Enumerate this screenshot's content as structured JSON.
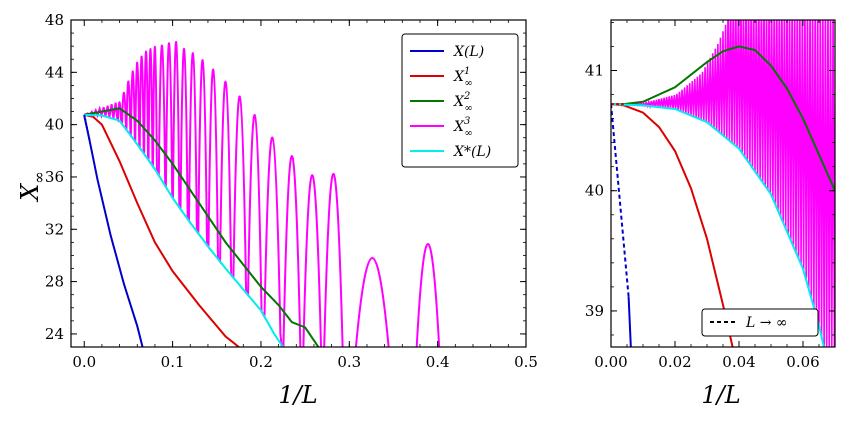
{
  "chart_data": [
    {
      "type": "line",
      "panel": "left",
      "xlabel": "1/L",
      "ylabel": "X∞",
      "xlim": [
        -0.015,
        0.5
      ],
      "ylim": [
        23,
        48
      ],
      "x_ticks": [
        "0.0",
        "0.1",
        "0.2",
        "0.3",
        "0.4",
        "0.5"
      ],
      "y_ticks": [
        "24",
        "28",
        "32",
        "36",
        "40",
        "44",
        "48"
      ],
      "legend": {
        "placement": "top-right",
        "entries": [
          "X(L)",
          "X∞1",
          "X∞2",
          "X∞3",
          "X*(L)"
        ]
      },
      "series": [
        {
          "name": "X(L)",
          "color": "#0000cc",
          "x": [
            0.0,
            0.006,
            0.015,
            0.03,
            0.045,
            0.06,
            0.066
          ],
          "y": [
            40.7,
            38.8,
            35.8,
            31.5,
            27.8,
            24.6,
            23.0
          ]
        },
        {
          "name": "X∞1",
          "color": "#dd0000",
          "x": [
            0.0,
            0.01,
            0.02,
            0.04,
            0.06,
            0.08,
            0.1,
            0.13,
            0.16,
            0.175
          ],
          "y": [
            40.75,
            40.6,
            40.0,
            37.2,
            34.0,
            31.0,
            28.8,
            26.2,
            23.8,
            23.0
          ]
        },
        {
          "name": "X∞2",
          "color": "#007700",
          "x": [
            0.0,
            0.02,
            0.04,
            0.06,
            0.08,
            0.1,
            0.12,
            0.14,
            0.16,
            0.18,
            0.2,
            0.22,
            0.235,
            0.25,
            0.265
          ],
          "y": [
            40.75,
            41.0,
            41.25,
            40.3,
            38.8,
            37.0,
            35.0,
            33.0,
            31.0,
            29.3,
            27.6,
            26.2,
            24.9,
            24.5,
            23.0
          ]
        },
        {
          "name": "X*(L)",
          "color": "#00eeee",
          "x": [
            0.0,
            0.02,
            0.04,
            0.06,
            0.08,
            0.1,
            0.12,
            0.14,
            0.16,
            0.18,
            0.2,
            0.215,
            0.225
          ],
          "y": [
            40.75,
            40.7,
            40.3,
            38.5,
            36.6,
            34.4,
            32.5,
            30.7,
            29.0,
            27.4,
            25.8,
            24.0,
            23.0
          ]
        }
      ],
      "x_infinity_3": {
        "name": "X∞3",
        "color": "#ff00ff",
        "lower_envelope": {
          "x": [
            0.0,
            0.02,
            0.04,
            0.06,
            0.08,
            0.1,
            0.12,
            0.14,
            0.16,
            0.18,
            0.2,
            0.215
          ],
          "y": [
            40.75,
            40.7,
            40.3,
            38.5,
            36.6,
            34.4,
            32.5,
            30.7,
            29.0,
            27.4,
            25.8,
            24.0
          ]
        },
        "peaks": {
          "x": [
            0.04,
            0.045,
            0.05,
            0.055,
            0.06,
            0.065,
            0.07,
            0.075,
            0.08,
            0.088,
            0.096,
            0.104,
            0.113,
            0.123,
            0.134,
            0.146,
            0.16,
            0.176,
            0.193,
            0.213,
            0.235,
            0.258,
            0.282,
            0.326,
            0.389
          ],
          "y": [
            41.8,
            42.6,
            43.5,
            44.3,
            45.0,
            45.5,
            45.9,
            46.1,
            46.3,
            46.5,
            46.7,
            46.8,
            46.3,
            46.0,
            45.5,
            44.8,
            43.9,
            42.8,
            41.4,
            39.7,
            38.0,
            36.5,
            36.6,
            30.0,
            31.1
          ]
        }
      }
    },
    {
      "type": "line",
      "panel": "right",
      "xlabel": "1/L",
      "xlim": [
        0.0,
        0.07
      ],
      "ylim": [
        38.7,
        41.42
      ],
      "x_ticks": [
        "0.00",
        "0.02",
        "0.04",
        "0.06"
      ],
      "y_ticks": [
        "39",
        "40",
        "41"
      ],
      "legend": {
        "placement": "bottom-right",
        "entries": [
          "L → ∞"
        ]
      },
      "series": [
        {
          "name": "X(L)",
          "color": "#0000cc",
          "x": [
            0.0,
            0.0055,
            0.0062
          ],
          "y": [
            40.72,
            39.12,
            38.7
          ],
          "dashed_until": 0.0055
        },
        {
          "name": "X∞1",
          "color": "#dd0000",
          "x": [
            0.0,
            0.004,
            0.01,
            0.015,
            0.02,
            0.025,
            0.03,
            0.035,
            0.038
          ],
          "y": [
            40.72,
            40.71,
            40.65,
            40.53,
            40.33,
            40.02,
            39.6,
            39.05,
            38.7
          ]
        },
        {
          "name": "X∞2",
          "color": "#007700",
          "x": [
            0.0,
            0.004,
            0.01,
            0.02,
            0.03,
            0.035,
            0.04,
            0.045,
            0.05,
            0.055,
            0.06,
            0.065,
            0.07
          ],
          "y": [
            40.72,
            40.72,
            40.74,
            40.86,
            41.07,
            41.16,
            41.2,
            41.17,
            41.04,
            40.85,
            40.6,
            40.3,
            40.0
          ]
        },
        {
          "name": "X*(L)",
          "color": "#00eeee",
          "x": [
            0.0,
            0.01,
            0.02,
            0.03,
            0.04,
            0.05,
            0.06,
            0.065,
            0.0665
          ],
          "y": [
            40.72,
            40.71,
            40.68,
            40.57,
            40.35,
            39.97,
            39.35,
            38.88,
            38.7
          ]
        }
      ],
      "x_infinity_3": {
        "name": "X∞3",
        "color": "#ff00ff",
        "lower_envelope": {
          "x": [
            0.0,
            0.01,
            0.02,
            0.03,
            0.04,
            0.05,
            0.06,
            0.065,
            0.0665
          ],
          "y": [
            40.72,
            40.71,
            40.68,
            40.57,
            40.35,
            39.97,
            39.35,
            38.88,
            38.7
          ]
        },
        "upper_envelope": {
          "x": [
            0.0,
            0.01,
            0.02,
            0.028,
            0.033,
            0.036
          ],
          "y": [
            40.72,
            40.73,
            40.8,
            40.98,
            41.22,
            41.42
          ]
        }
      }
    }
  ],
  "labels": {
    "left_ylabel_main": "X",
    "left_ylabel_sub": "∞",
    "xlabel": "1/L",
    "legend_left": [
      {
        "main": "X(L)",
        "sup": "",
        "sub": ""
      },
      {
        "main": "X",
        "sup": "1",
        "sub": "∞"
      },
      {
        "main": "X",
        "sup": "2",
        "sub": "∞"
      },
      {
        "main": "X",
        "sup": "3",
        "sub": "∞"
      },
      {
        "main": "X*(L)",
        "sup": "",
        "sub": ""
      }
    ],
    "legend_right": "L → ∞"
  }
}
